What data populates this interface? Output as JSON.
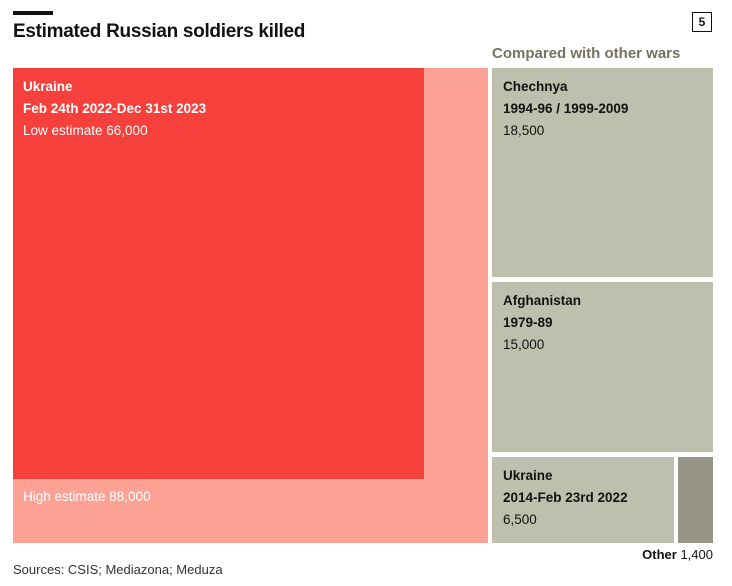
{
  "badge": "5",
  "title": "Estimated Russian soldiers killed",
  "subtitle": "Compared with other wars",
  "source": "Sources: CSIS; Mediazona; Meduza",
  "colors": {
    "ukraine_low": "#f5403c",
    "ukraine_high": "#fba294",
    "other_wars": "#bfbfad",
    "other_small": "#979585"
  },
  "chart_data": {
    "type": "treemap",
    "title": "Estimated Russian soldiers killed",
    "unit": "soldiers killed",
    "items": [
      {
        "key": "ukraine_high",
        "name": "Ukraine",
        "period": "Feb 24th 2022-Dec 31st 2023",
        "label": "High estimate 88,000",
        "value": 88000
      },
      {
        "key": "ukraine_low",
        "name": "Ukraine",
        "period": "Feb 24th 2022-Dec 31st 2023",
        "label": "Low estimate 66,000",
        "value": 66000
      },
      {
        "key": "chechnya",
        "name": "Chechnya",
        "period": "1994-96 / 1999-2009",
        "value": 18500,
        "value_label": "18,500"
      },
      {
        "key": "afghanistan",
        "name": "Afghanistan",
        "period": "1979-89",
        "value": 15000,
        "value_label": "15,000"
      },
      {
        "key": "ukraine_2014",
        "name": "Ukraine",
        "period": "2014-Feb 23rd 2022",
        "value": 6500,
        "value_label": "6,500"
      },
      {
        "key": "other",
        "name": "Other",
        "value": 1400,
        "value_label": "1,400"
      }
    ]
  }
}
